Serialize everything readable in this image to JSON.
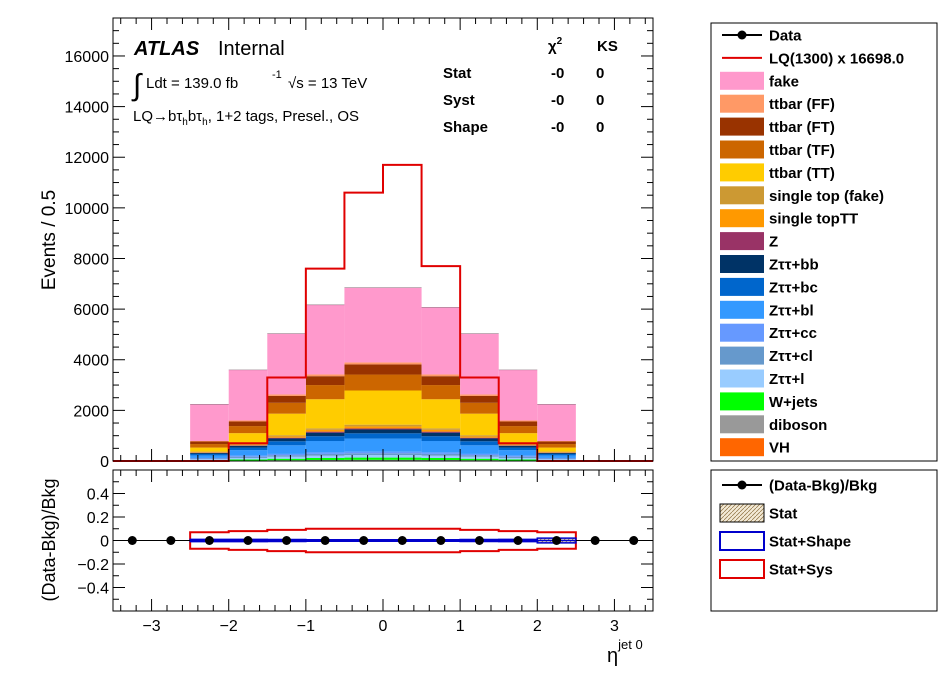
{
  "colors": {
    "fake": "#ff99cc",
    "ttbar_ff": "#ff9966",
    "ttbar_ft": "#993300",
    "ttbar_tf": "#cc6600",
    "ttbar_tt": "#ffcc00",
    "single_top_fake": "#cc9933",
    "single_top_tt": "#ff9900",
    "z": "#993366",
    "ztt_bb": "#003366",
    "ztt_bc": "#0066cc",
    "ztt_bl": "#3399ff",
    "ztt_cc": "#6699ff",
    "ztt_cl": "#6699cc",
    "ztt_l": "#99ccff",
    "wjets": "#00ff00",
    "diboson": "#999999",
    "vh": "#ff6600",
    "signal": "#e00000",
    "stat_shape": "#0000cc",
    "stat_sys": "#e00000",
    "stat_fill": "#e8d9b8"
  },
  "annotations": {
    "atlas": "ATLAS",
    "internal": "Internal",
    "lumi_int": "∫",
    "lumi_text": "Ldt = 139.0 fb",
    "lumi_exp": "-1",
    "sqrt_s": "√s = 13 TeV",
    "region_main": "LQ→bτ",
    "region_sub1": "h",
    "region_mid": "bτ",
    "region_sub2": "h",
    "region_rest": ", 1+2 tags, Presel., OS"
  },
  "stats_table": {
    "chi2_label": "χ",
    "chi2_exp": "2",
    "ks_label": "KS",
    "rows": [
      {
        "label": "Stat",
        "chi2": "-0",
        "ks": "0"
      },
      {
        "label": "Syst",
        "chi2": "-0",
        "ks": "0"
      },
      {
        "label": "Shape",
        "chi2": "-0",
        "ks": "0"
      }
    ]
  },
  "legend_main": [
    {
      "label": "Data",
      "style": "marker"
    },
    {
      "label": "LQ(1300) x 16698.0",
      "style": "line",
      "color_key": "signal"
    },
    {
      "label": "fake",
      "style": "box",
      "color_key": "fake"
    },
    {
      "label": "ttbar (FF)",
      "style": "box",
      "color_key": "ttbar_ff"
    },
    {
      "label": "ttbar (FT)",
      "style": "box",
      "color_key": "ttbar_ft"
    },
    {
      "label": "ttbar (TF)",
      "style": "box",
      "color_key": "ttbar_tf"
    },
    {
      "label": "ttbar (TT)",
      "style": "box",
      "color_key": "ttbar_tt"
    },
    {
      "label": "single top (fake)",
      "style": "box",
      "color_key": "single_top_fake"
    },
    {
      "label": "single topTT",
      "style": "box",
      "color_key": "single_top_tt"
    },
    {
      "label": "Z",
      "style": "box",
      "color_key": "z"
    },
    {
      "label": "Zττ+bb",
      "style": "box",
      "color_key": "ztt_bb"
    },
    {
      "label": "Zττ+bc",
      "style": "box",
      "color_key": "ztt_bc"
    },
    {
      "label": "Zττ+bl",
      "style": "box",
      "color_key": "ztt_bl"
    },
    {
      "label": "Zττ+cc",
      "style": "box",
      "color_key": "ztt_cc"
    },
    {
      "label": "Zττ+cl",
      "style": "box",
      "color_key": "ztt_cl"
    },
    {
      "label": "Zττ+l",
      "style": "box",
      "color_key": "ztt_l"
    },
    {
      "label": "W+jets",
      "style": "box",
      "color_key": "wjets"
    },
    {
      "label": "diboson",
      "style": "box",
      "color_key": "diboson"
    },
    {
      "label": "VH",
      "style": "box",
      "color_key": "vh"
    }
  ],
  "legend_ratio": [
    {
      "label": "(Data-Bkg)/Bkg",
      "style": "marker"
    },
    {
      "label": "Stat",
      "style": "hatch",
      "color_key": "stat_fill"
    },
    {
      "label": "Stat+Shape",
      "style": "outline",
      "color_key": "stat_shape"
    },
    {
      "label": "Stat+Sys",
      "style": "outline",
      "color_key": "stat_sys"
    }
  ],
  "chart_data": [
    {
      "type": "bar",
      "subtype": "stacked-histogram",
      "ylabel": "Events / 0.5",
      "xlim": [
        -3.5,
        3.5
      ],
      "ylim": [
        0,
        17500
      ],
      "xticks": [
        -3,
        -2,
        -1,
        0,
        1,
        2,
        3
      ],
      "yticks": [
        0,
        2000,
        4000,
        6000,
        8000,
        10000,
        12000,
        14000,
        16000
      ],
      "bin_edges": [
        -3.5,
        -3.0,
        -2.5,
        -2.0,
        -1.5,
        -1.0,
        -0.5,
        0.0,
        0.5,
        1.0,
        1.5,
        2.0,
        2.5,
        3.0,
        3.5
      ],
      "series": [
        {
          "key": "diboson",
          "values": [
            0,
            0,
            10,
            20,
            30,
            40,
            45,
            45,
            40,
            30,
            20,
            10,
            0,
            0
          ]
        },
        {
          "key": "wjets",
          "values": [
            0,
            0,
            20,
            40,
            60,
            80,
            90,
            90,
            80,
            60,
            40,
            20,
            0,
            0
          ]
        },
        {
          "key": "ztt_l",
          "values": [
            0,
            0,
            40,
            60,
            80,
            90,
            100,
            100,
            90,
            80,
            60,
            40,
            0,
            0
          ]
        },
        {
          "key": "ztt_cl",
          "values": [
            0,
            0,
            30,
            50,
            60,
            70,
            70,
            70,
            70,
            60,
            50,
            30,
            0,
            0
          ]
        },
        {
          "key": "ztt_cc",
          "values": [
            0,
            0,
            20,
            40,
            50,
            60,
            60,
            60,
            60,
            50,
            40,
            20,
            0,
            0
          ]
        },
        {
          "key": "ztt_bl",
          "values": [
            0,
            0,
            100,
            220,
            340,
            450,
            520,
            520,
            450,
            340,
            220,
            100,
            0,
            0
          ]
        },
        {
          "key": "ztt_bc",
          "values": [
            0,
            0,
            60,
            100,
            160,
            190,
            210,
            210,
            190,
            160,
            100,
            60,
            0,
            0
          ]
        },
        {
          "key": "ztt_bb",
          "values": [
            0,
            0,
            40,
            70,
            110,
            140,
            150,
            150,
            140,
            110,
            70,
            40,
            0,
            0
          ]
        },
        {
          "key": "z",
          "values": [
            0,
            0,
            10,
            20,
            30,
            40,
            40,
            40,
            40,
            30,
            20,
            10,
            0,
            0
          ]
        },
        {
          "key": "single_top_tt",
          "values": [
            0,
            0,
            20,
            30,
            50,
            70,
            80,
            80,
            70,
            50,
            30,
            20,
            0,
            0
          ]
        },
        {
          "key": "single_top_fake",
          "values": [
            0,
            0,
            20,
            30,
            50,
            60,
            70,
            70,
            60,
            50,
            30,
            20,
            0,
            0
          ]
        },
        {
          "key": "ttbar_tt",
          "values": [
            0,
            0,
            160,
            420,
            850,
            1150,
            1350,
            1350,
            1150,
            850,
            420,
            160,
            0,
            0
          ]
        },
        {
          "key": "ttbar_tf",
          "values": [
            0,
            0,
            140,
            280,
            430,
            560,
            630,
            630,
            560,
            430,
            280,
            140,
            0,
            0
          ]
        },
        {
          "key": "ttbar_ft",
          "values": [
            0,
            0,
            100,
            180,
            270,
            350,
            400,
            400,
            350,
            270,
            180,
            100,
            0,
            0
          ]
        },
        {
          "key": "ttbar_ff",
          "values": [
            0,
            0,
            20,
            40,
            60,
            70,
            80,
            80,
            70,
            60,
            40,
            20,
            0,
            0
          ]
        },
        {
          "key": "fake",
          "values": [
            0,
            0,
            1450,
            2000,
            2400,
            2750,
            2950,
            2950,
            2650,
            2400,
            2000,
            1450,
            0,
            0
          ]
        }
      ],
      "signal": {
        "name": "LQ(1300) x 16698.0",
        "values": [
          0,
          0,
          0,
          700,
          3300,
          7600,
          10600,
          11700,
          7700,
          3300,
          700,
          0,
          0,
          0
        ]
      }
    },
    {
      "type": "scatter",
      "subtype": "ratio",
      "xlabel": "η",
      "xlabel_sup": "jet 0",
      "ylabel": "(Data-Bkg)/Bkg",
      "xlim": [
        -3.5,
        3.5
      ],
      "ylim": [
        -0.6,
        0.6
      ],
      "xticks": [
        -3,
        -2,
        -1,
        0,
        1,
        2,
        3
      ],
      "yticks": [
        -0.4,
        -0.2,
        0,
        0.2,
        0.4
      ],
      "points_x": [
        -3.25,
        -2.75,
        -2.25,
        -1.75,
        -1.25,
        -0.75,
        -0.25,
        0.25,
        0.75,
        1.25,
        1.75,
        2.25,
        2.75,
        3.25
      ],
      "points_y": [
        0,
        0,
        0,
        0,
        0,
        0,
        0,
        0,
        0,
        0,
        0,
        0,
        0,
        0
      ],
      "stat_sys_band": [
        0,
        0,
        0.07,
        0.08,
        0.09,
        0.1,
        0.1,
        0.1,
        0.1,
        0.09,
        0.08,
        0.07,
        0,
        0
      ],
      "stat_shape_band": [
        0,
        0,
        0.01,
        0.01,
        0.008,
        0.006,
        0.006,
        0.006,
        0.006,
        0.008,
        0.01,
        0.02,
        0,
        0
      ]
    }
  ]
}
